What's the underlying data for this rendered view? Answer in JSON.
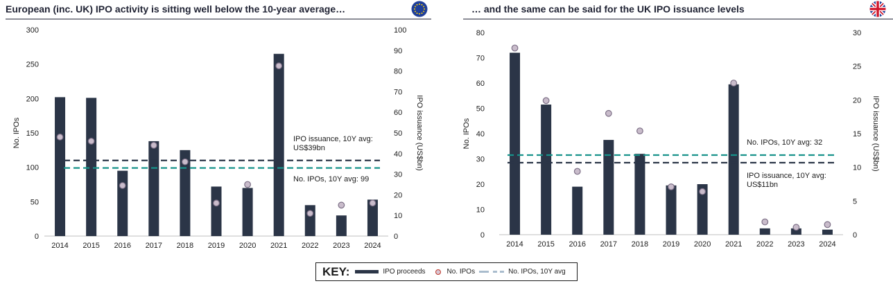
{
  "colors": {
    "bar": "#2b3547",
    "dot_fill": "#c9bccb",
    "dot_stroke": "#7c6f86",
    "avg_issuance_line": "#2b3547",
    "avg_ipos_line": "#17928a",
    "key_line": "#a9bccd"
  },
  "key": {
    "title": "KEY:",
    "items": [
      "IPO proceeds",
      "No. IPOs",
      "No. IPOs, 10Y avg"
    ]
  },
  "chart_data": [
    {
      "type": "bar",
      "title": "European (inc. UK) IPO activity is sitting well below the 10-year average…",
      "flag_icon": "eu-flag-icon",
      "categories": [
        "2014",
        "2015",
        "2016",
        "2017",
        "2018",
        "2019",
        "2020",
        "2021",
        "2022",
        "2023",
        "2024"
      ],
      "ylabel_left": "No. IPOs",
      "ylabel_right": "IPO issuance (US$bn)",
      "ylim_left": [
        0,
        300
      ],
      "ylim_right": [
        0,
        100
      ],
      "yticks_left": [
        "0",
        "50",
        "100",
        "150",
        "200",
        "250",
        "300"
      ],
      "yticks_right": [
        "0",
        "10",
        "20",
        "30",
        "40",
        "50",
        "60",
        "70",
        "80",
        "90",
        "100"
      ],
      "series": [
        {
          "name": "IPO proceeds",
          "axis": "left",
          "kind": "bar",
          "values": [
            202,
            201,
            95,
            138,
            125,
            72,
            70,
            265,
            45,
            30,
            53
          ]
        },
        {
          "name": "No. IPOs",
          "axis": "right",
          "kind": "dot",
          "values": [
            48,
            46,
            24.5,
            44,
            36,
            16,
            25,
            82.5,
            11,
            15,
            16
          ]
        }
      ],
      "reference_lines": [
        {
          "axis": "left",
          "value": 110,
          "style": "navy-dash",
          "label_lines": [
            "IPO issuance, 10Y avg:",
            "US$39bn"
          ],
          "label_pos": "above"
        },
        {
          "axis": "left",
          "value": 99,
          "style": "teal-dash",
          "label_lines": [
            "No. IPOs, 10Y avg: 99"
          ],
          "label_pos": "below"
        }
      ],
      "grid": false
    },
    {
      "type": "bar",
      "title": "… and the same can be said for the UK IPO issuance levels",
      "flag_icon": "uk-flag-icon",
      "categories": [
        "2014",
        "2015",
        "2016",
        "2017",
        "2018",
        "2019",
        "2020",
        "2021",
        "2022",
        "2023",
        "2024"
      ],
      "ylabel_left": "No. IPOs",
      "ylabel_right": "IPO issuance (US$bn)",
      "ylim_left": [
        0,
        80
      ],
      "ylim_right": [
        0,
        30
      ],
      "yticks_left": [
        "0",
        "10",
        "20",
        "30",
        "40",
        "50",
        "60",
        "70",
        "80"
      ],
      "yticks_right": [
        "0",
        "5",
        "10",
        "15",
        "20",
        "25",
        "30"
      ],
      "series": [
        {
          "name": "IPO proceeds",
          "axis": "left",
          "kind": "bar",
          "values": [
            72,
            51.5,
            19,
            37.5,
            32,
            19.5,
            20,
            59.5,
            2.5,
            2.5,
            2
          ]
        },
        {
          "name": "No. IPOs",
          "axis": "right",
          "kind": "dot",
          "values": [
            27.7,
            19.9,
            9.4,
            18.0,
            15.4,
            7.1,
            6.4,
            22.5,
            1.9,
            1.1,
            1.5
          ]
        }
      ],
      "reference_lines": [
        {
          "axis": "left",
          "value": 31.5,
          "style": "teal-dash",
          "label_lines": [
            "No. IPOs, 10Y avg: 32"
          ],
          "label_pos": "above"
        },
        {
          "axis": "left",
          "value": 28.5,
          "style": "navy-dash",
          "label_lines": [
            "IPO issuance, 10Y avg:",
            "US$11bn"
          ],
          "label_pos": "below"
        }
      ],
      "grid": false
    }
  ]
}
